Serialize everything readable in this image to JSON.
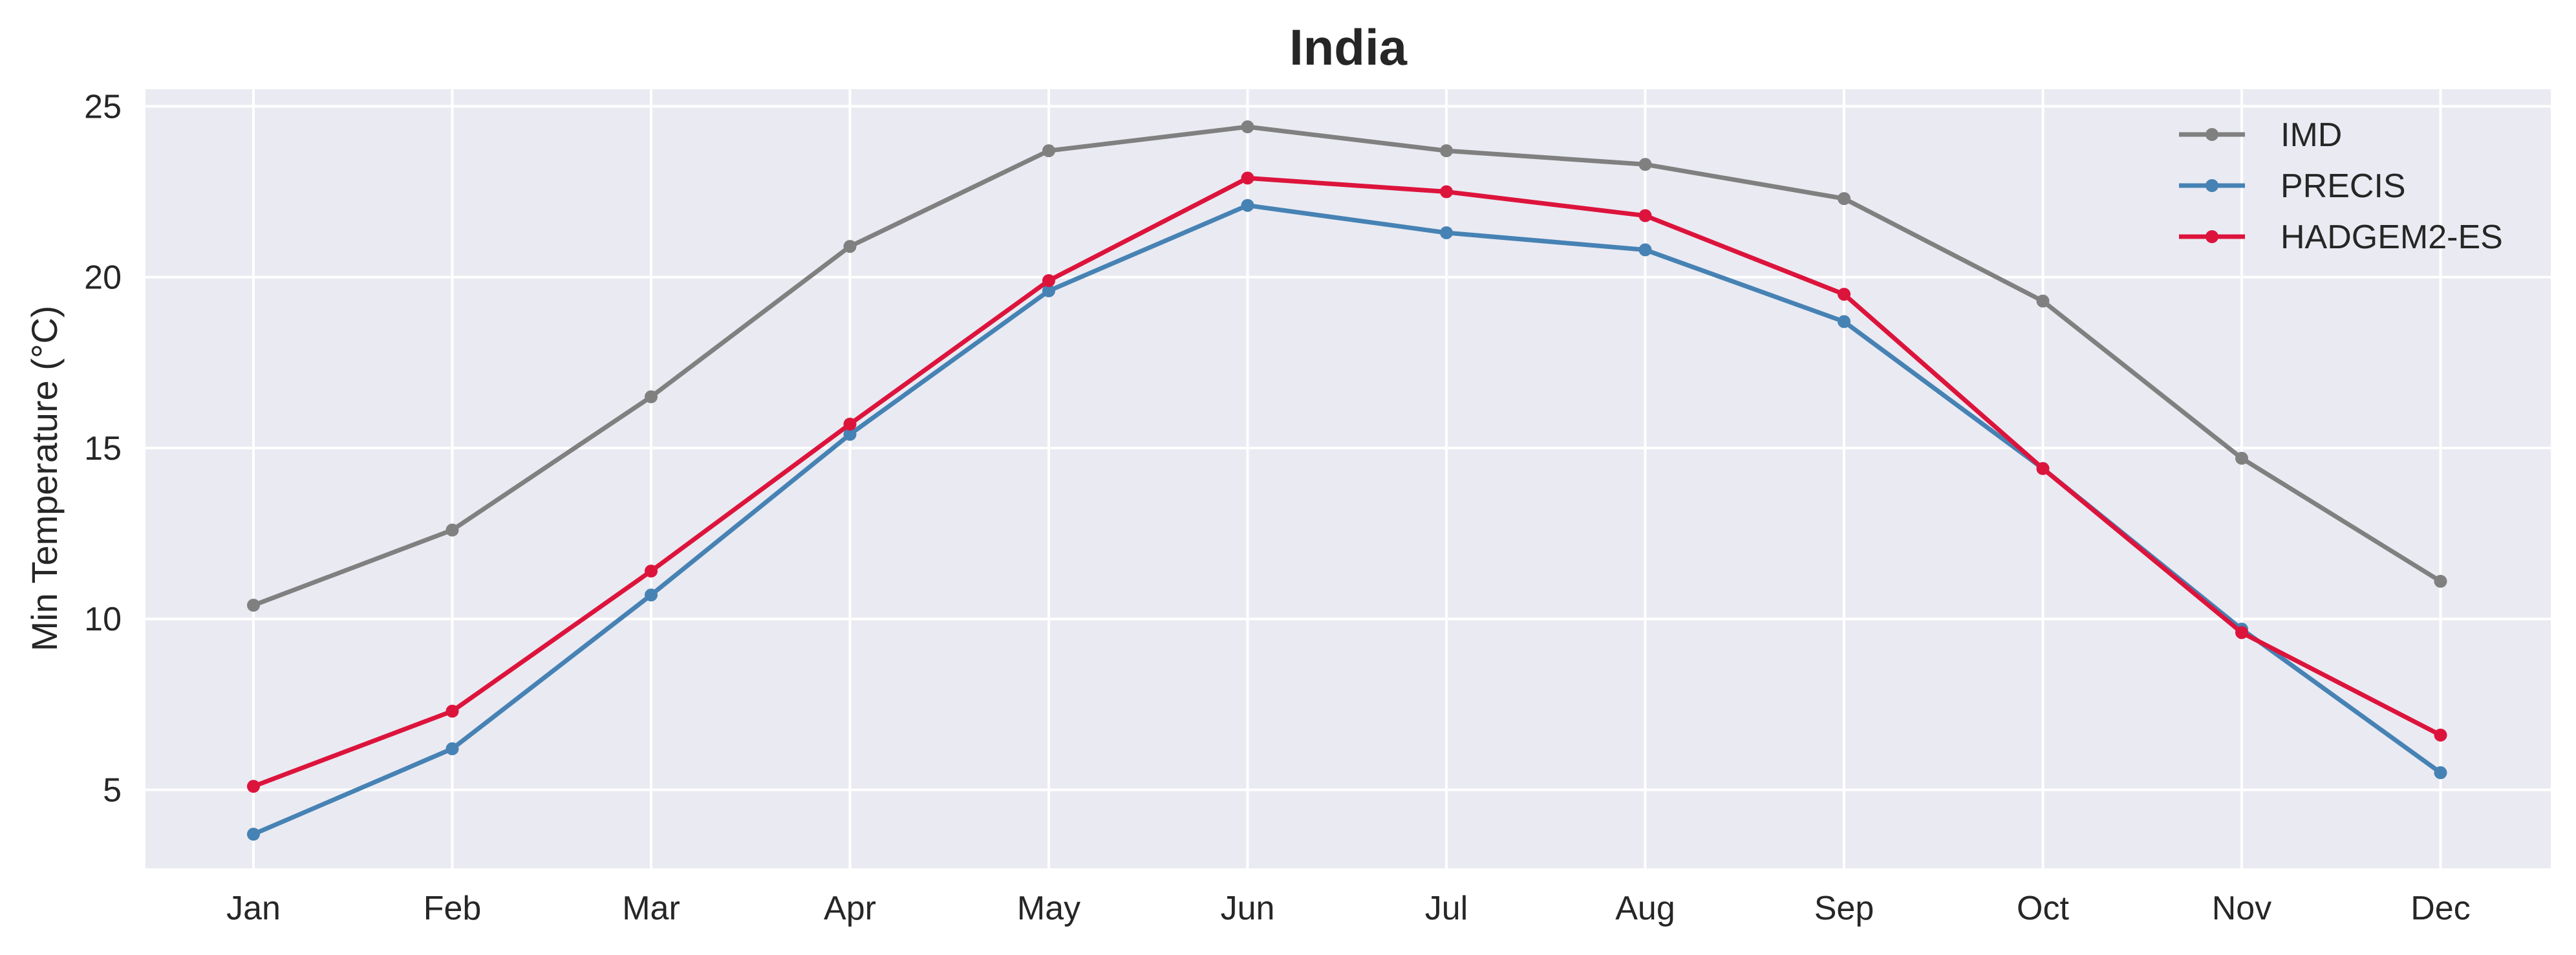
{
  "chart_data": {
    "type": "line",
    "title": "India",
    "xlabel": "",
    "ylabel": "Min Temperature (°C)",
    "ylim": [
      2.7,
      25.5
    ],
    "yticks": [
      5,
      10,
      15,
      20,
      25
    ],
    "categories": [
      "Jan",
      "Feb",
      "Mar",
      "Apr",
      "May",
      "Jun",
      "Jul",
      "Aug",
      "Sep",
      "Oct",
      "Nov",
      "Dec"
    ],
    "grid": true,
    "legend_position": "top-right",
    "series": [
      {
        "name": "IMD",
        "color": "#808080",
        "values": [
          10.4,
          12.6,
          16.5,
          20.9,
          23.7,
          24.4,
          23.7,
          23.3,
          22.3,
          19.3,
          14.7,
          11.1
        ]
      },
      {
        "name": "PRECIS",
        "color": "#4682b4",
        "values": [
          3.7,
          6.2,
          10.7,
          15.4,
          19.6,
          22.1,
          21.3,
          20.8,
          18.7,
          14.4,
          9.7,
          5.5
        ]
      },
      {
        "name": "HADGEM2-ES",
        "color": "#dc143c",
        "values": [
          5.1,
          7.3,
          11.4,
          15.7,
          19.9,
          22.9,
          22.5,
          21.8,
          19.5,
          14.4,
          9.6,
          6.6
        ]
      }
    ]
  }
}
